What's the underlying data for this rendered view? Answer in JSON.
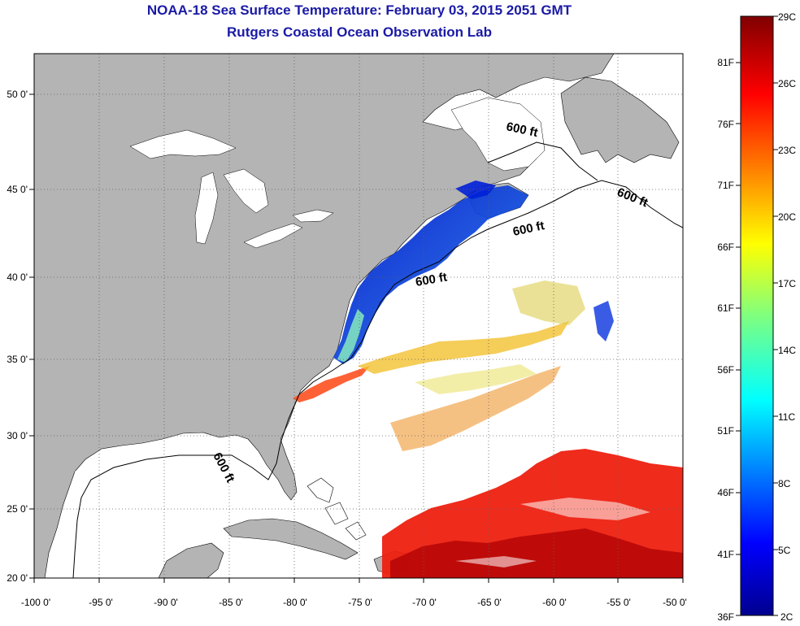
{
  "title_line1": "NOAA-18 Sea Surface Temperature:  February 03, 2015 2051 GMT",
  "title_line2": "Rutgers Coastal Ocean Observation Lab",
  "lat_ticks": [
    "50 0'",
    "45 0'",
    "40 0'",
    "35 0'",
    "30 0'",
    "25 0'",
    "20 0'"
  ],
  "lon_ticks": [
    "-100 0'",
    "-95 0'",
    "-90 0'",
    "-85 0'",
    "-80 0'",
    "-75 0'",
    "-70 0'",
    "-65 0'",
    "-60 0'",
    "-55 0'",
    "-50 0'"
  ],
  "contour_labels": [
    "600 ft",
    "600 ft",
    "600 ft",
    "600 ft",
    "600 ft"
  ],
  "colorbar": {
    "celsius": [
      "29C",
      "26C",
      "23C",
      "20C",
      "17C",
      "14C",
      "11C",
      "8C",
      "5C",
      "2C"
    ],
    "fahrenheit": [
      "81F",
      "76F",
      "71F",
      "66F",
      "61F",
      "56F",
      "51F",
      "46F",
      "41F",
      "36F"
    ]
  },
  "colors": {
    "land": "#b4b4b4",
    "ocean": "#ffffff",
    "title": "#1a1aa6"
  }
}
